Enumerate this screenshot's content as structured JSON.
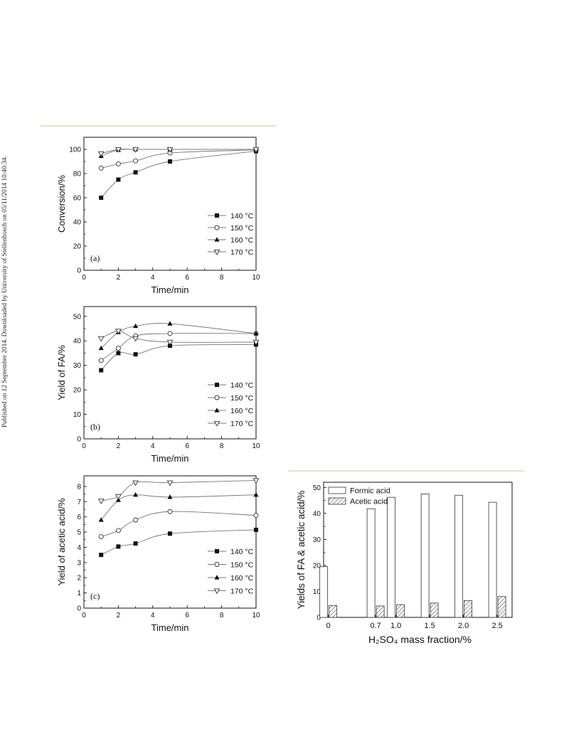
{
  "side_note": "Published on 12 September 2014. Downloaded by University of Stellenbosch on 05/11/2014 10:40:34.",
  "chart_data": [
    {
      "id": "a",
      "type": "line",
      "panel_label": "(a)",
      "xlabel": "Time/min",
      "ylabel": "Conversion/%",
      "xlim": [
        0,
        10
      ],
      "ylim": [
        0,
        110
      ],
      "xticks": [
        0,
        2,
        4,
        6,
        8,
        10
      ],
      "yticks": [
        0,
        20,
        40,
        60,
        80,
        100
      ],
      "legend_position": "bottom-right",
      "series": [
        {
          "name": "140 °C",
          "marker": "square-filled",
          "x": [
            1,
            2,
            3,
            5,
            10
          ],
          "y": [
            60,
            75,
            81,
            90,
            98.5
          ]
        },
        {
          "name": "150 °C",
          "marker": "circle-open",
          "x": [
            1,
            2,
            3,
            5,
            10
          ],
          "y": [
            84.5,
            88,
            90.5,
            97,
            99.5
          ]
        },
        {
          "name": "160 °C",
          "marker": "triangle-up-filled",
          "x": [
            1,
            2,
            3,
            5,
            10
          ],
          "y": [
            94.5,
            99.5,
            100,
            100,
            100
          ]
        },
        {
          "name": "170 °C",
          "marker": "triangle-down-open",
          "x": [
            1,
            2,
            3,
            5,
            10
          ],
          "y": [
            96.5,
            100,
            100,
            100,
            100
          ]
        }
      ]
    },
    {
      "id": "b",
      "type": "line",
      "panel_label": "(b)",
      "xlabel": "Time/min",
      "ylabel": "Yield of FA/%",
      "xlim": [
        0,
        10
      ],
      "ylim": [
        0,
        54
      ],
      "xticks": [
        0,
        2,
        4,
        6,
        8,
        10
      ],
      "yticks": [
        0,
        10,
        20,
        30,
        40,
        50
      ],
      "legend_position": "bottom-right",
      "series": [
        {
          "name": "140 °C",
          "marker": "square-filled",
          "x": [
            1,
            2,
            3,
            5,
            10
          ],
          "y": [
            28,
            35,
            34.5,
            38,
            38.5
          ]
        },
        {
          "name": "150 °C",
          "marker": "circle-open",
          "x": [
            1,
            2,
            3,
            5,
            10
          ],
          "y": [
            32,
            37,
            42,
            43,
            43
          ]
        },
        {
          "name": "160 °C",
          "marker": "triangle-up-filled",
          "x": [
            1,
            2,
            3,
            5,
            10
          ],
          "y": [
            37,
            43.5,
            46,
            47,
            43
          ]
        },
        {
          "name": "170 °C",
          "marker": "triangle-down-open",
          "x": [
            1,
            2,
            3,
            5,
            10
          ],
          "y": [
            41,
            44,
            41,
            39.5,
            39.5
          ]
        }
      ]
    },
    {
      "id": "c",
      "type": "line",
      "panel_label": "(c)",
      "xlabel": "Time/min",
      "ylabel": "Yield of acetic acid/%",
      "xlim": [
        0,
        10
      ],
      "ylim": [
        0,
        8.7
      ],
      "xticks": [
        0,
        2,
        4,
        6,
        8,
        10
      ],
      "yticks": [
        0,
        1,
        2,
        3,
        4,
        5,
        6,
        7,
        8
      ],
      "legend_position": "bottom-right",
      "series": [
        {
          "name": "140 °C",
          "marker": "square-filled",
          "x": [
            1,
            2,
            3,
            5,
            10
          ],
          "y": [
            3.5,
            4.05,
            4.25,
            4.9,
            5.15
          ]
        },
        {
          "name": "150 °C",
          "marker": "circle-open",
          "x": [
            1,
            2,
            3,
            5,
            10
          ],
          "y": [
            4.7,
            5.1,
            5.8,
            6.35,
            6.1
          ]
        },
        {
          "name": "160 °C",
          "marker": "triangle-up-filled",
          "x": [
            1,
            2,
            3,
            5,
            10
          ],
          "y": [
            5.8,
            7.1,
            7.45,
            7.3,
            7.45
          ]
        },
        {
          "name": "170 °C",
          "marker": "triangle-down-open",
          "x": [
            1,
            2,
            3,
            5,
            10
          ],
          "y": [
            7.05,
            7.35,
            8.25,
            8.25,
            8.4
          ]
        }
      ]
    },
    {
      "id": "d",
      "type": "bar",
      "xlabel": "H₂SO₄ mass fraction/%",
      "ylabel": "Yields of FA & acetic acid/%",
      "ylim": [
        0,
        52
      ],
      "yticks": [
        0,
        10,
        20,
        30,
        40,
        50
      ],
      "legend_position": "top-left",
      "categories": [
        "0",
        "0.7",
        "1.0",
        "1.5",
        "2.0",
        "2.5"
      ],
      "category_positions": [
        0,
        0.7,
        1.0,
        1.5,
        2.0,
        2.5
      ],
      "series": [
        {
          "name": "Formic acid",
          "fill": "open",
          "values": [
            19.5,
            41.8,
            46.2,
            47.5,
            47,
            44.3
          ]
        },
        {
          "name": "Acetic acid",
          "fill": "hatched",
          "values": [
            4.6,
            4.4,
            4.9,
            5.5,
            6.5,
            8
          ]
        }
      ]
    }
  ],
  "colors": {
    "axis": "#111111",
    "curve": "#777777",
    "rule": "#e4e2cf",
    "hatch": "#555555"
  }
}
